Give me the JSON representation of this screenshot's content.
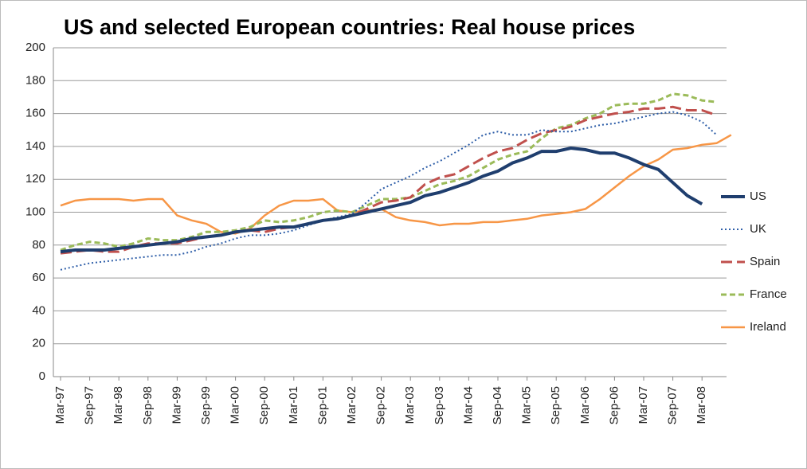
{
  "chart_data": {
    "type": "line",
    "title": "US and selected European countries: Real house prices",
    "categories": [
      "Mar-97",
      null,
      "Sep-97",
      null,
      "Mar-98",
      null,
      "Sep-98",
      null,
      "Mar-99",
      null,
      "Sep-99",
      null,
      "Mar-00",
      null,
      "Sep-00",
      null,
      "Mar-01",
      null,
      "Sep-01",
      null,
      "Mar-02",
      null,
      "Sep-02",
      null,
      "Mar-03",
      null,
      "Sep-03",
      null,
      "Mar-04",
      null,
      "Sep-04",
      null,
      "Mar-05",
      null,
      "Sep-05",
      null,
      "Mar-06",
      null,
      "Sep-06",
      null,
      "Mar-07",
      null,
      "Sep-07",
      null,
      "Mar-08",
      null,
      null
    ],
    "series": [
      {
        "name": "US",
        "color": "#1f3e6e",
        "style": "bold",
        "values": [
          76,
          77,
          77,
          77,
          78,
          79,
          80,
          81,
          82,
          84,
          85,
          86,
          88,
          89,
          90,
          91,
          91,
          93,
          95,
          96,
          98,
          100,
          102,
          104,
          106,
          110,
          112,
          115,
          118,
          122,
          125,
          130,
          133,
          137,
          137,
          139,
          138,
          136,
          136,
          133,
          129,
          126,
          118,
          110,
          105,
          null,
          null
        ]
      },
      {
        "name": "UK",
        "color": "#2e5ea8",
        "style": "dotted",
        "values": [
          65,
          67,
          69,
          70,
          71,
          72,
          73,
          74,
          74,
          76,
          79,
          81,
          84,
          86,
          86,
          87,
          89,
          92,
          95,
          97,
          99,
          106,
          114,
          118,
          122,
          127,
          131,
          136,
          141,
          147,
          149,
          147,
          147,
          150,
          149,
          149,
          151,
          153,
          154,
          156,
          158,
          160,
          161,
          159,
          155,
          147,
          null
        ]
      },
      {
        "name": "Spain",
        "color": "#c0504d",
        "style": "dashed",
        "values": [
          75,
          76,
          77,
          76,
          76,
          79,
          81,
          81,
          81,
          83,
          85,
          86,
          88,
          89,
          88,
          90,
          91,
          93,
          95,
          96,
          98,
          102,
          106,
          107,
          109,
          117,
          121,
          123,
          128,
          133,
          137,
          139,
          144,
          148,
          150,
          152,
          156,
          158,
          160,
          161,
          163,
          163,
          164,
          162,
          162,
          159,
          null
        ]
      },
      {
        "name": "France",
        "color": "#9bbb59",
        "style": "short-dashed",
        "values": [
          77,
          80,
          82,
          81,
          79,
          81,
          84,
          83,
          83,
          85,
          88,
          88,
          89,
          91,
          95,
          94,
          95,
          97,
          100,
          101,
          100,
          104,
          108,
          108,
          109,
          113,
          117,
          119,
          122,
          127,
          132,
          135,
          137,
          145,
          151,
          153,
          157,
          160,
          165,
          166,
          166,
          168,
          172,
          171,
          168,
          167,
          null
        ]
      },
      {
        "name": "Ireland",
        "color": "#f79646",
        "style": "solid",
        "values": [
          104,
          107,
          108,
          108,
          108,
          107,
          108,
          108,
          98,
          95,
          93,
          88,
          87,
          90,
          98,
          104,
          107,
          107,
          108,
          101,
          100,
          101,
          102,
          97,
          95,
          94,
          92,
          93,
          93,
          94,
          94,
          95,
          96,
          98,
          99,
          100,
          102,
          108,
          115,
          122,
          128,
          132,
          138,
          139,
          141,
          142,
          147
        ]
      }
    ],
    "ylim": [
      0,
      200
    ],
    "yticks": [
      0,
      20,
      40,
      60,
      80,
      100,
      120,
      140,
      160,
      180,
      200
    ],
    "grid": true,
    "legend": "right"
  }
}
